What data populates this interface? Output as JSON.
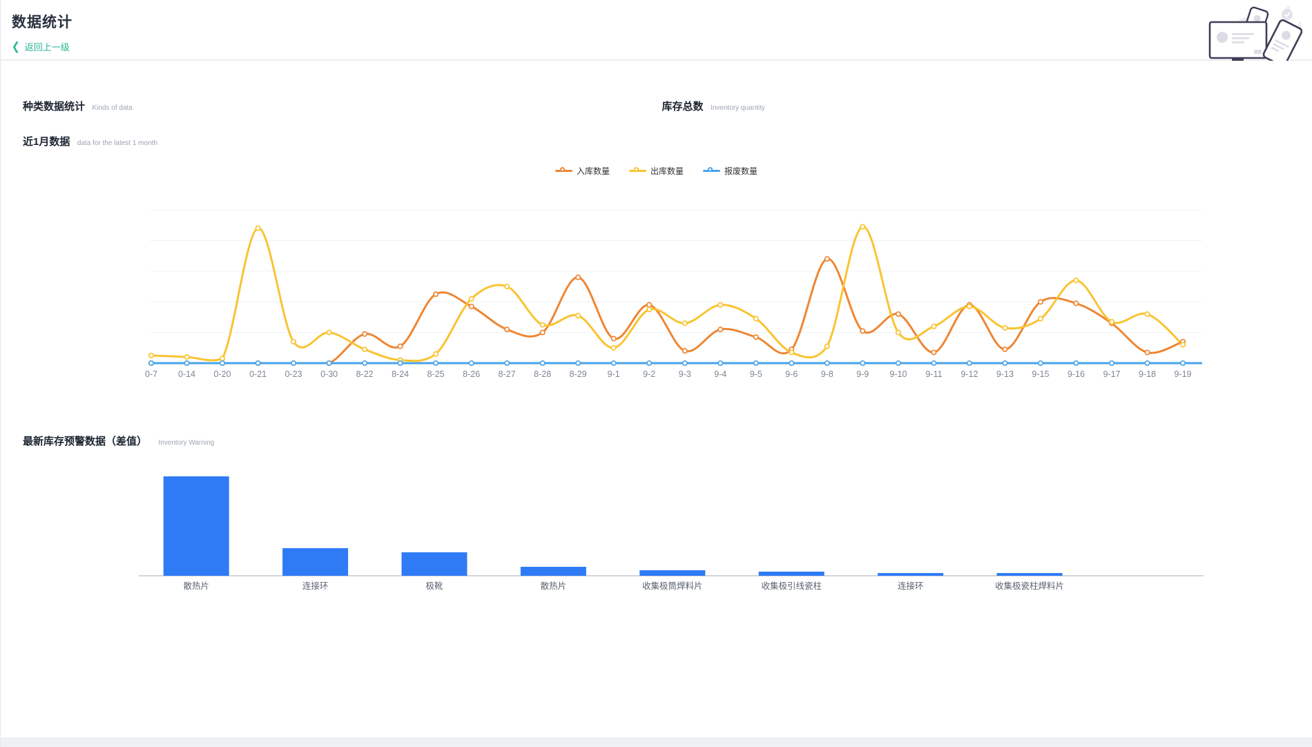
{
  "header": {
    "title": "数据统计",
    "back_label": "返回上一级",
    "back_chevron": "〈"
  },
  "sections": {
    "kinds": {
      "title": "种类数据统计",
      "subtitle": "Kinds of data"
    },
    "inventory": {
      "title": "库存总数",
      "subtitle": "Inventory quantity"
    },
    "month": {
      "title": "近1月数据",
      "subtitle": "data for the latest 1 month"
    },
    "warning": {
      "title": "最新库存预警数据（差值）",
      "subtitle": "Inventory Warning"
    }
  },
  "colors": {
    "accent_teal": "#26b394",
    "inbound_orange": "#EE8633",
    "outbound_yellow": "#F9C331",
    "scrap_blue": "#47A3EA",
    "bar_blue": "#2F7BF5",
    "gridline": "#edf1f6",
    "axis_label": "#7c8694",
    "bar_axis_line": "#c5c9d0"
  },
  "chart_data": [
    {
      "type": "line",
      "title": "近1月数据 (data for the latest 1 month)",
      "smooth": true,
      "grid": true,
      "legend_position": "top-center",
      "ylim": [
        0,
        50
      ],
      "y_gridline_step": 10,
      "categories": [
        "0-7",
        "0-14",
        "0-20",
        "0-21",
        "0-23",
        "0-30",
        "8-22",
        "8-24",
        "8-25",
        "8-26",
        "8-27",
        "8-28",
        "8-29",
        "9-1",
        "9-2",
        "9-3",
        "9-4",
        "9-5",
        "9-6",
        "9-8",
        "9-9",
        "9-10",
        "9-11",
        "9-12",
        "9-13",
        "9-15",
        "9-16",
        "9-17",
        "9-18",
        "9-19"
      ],
      "series": [
        {
          "name": "入库数量",
          "color": "#EE8633",
          "values": [
            0,
            0,
            0,
            0,
            0,
            0,
            9.5,
            5.5,
            22.5,
            18.5,
            11,
            10,
            28,
            8,
            19,
            4,
            11,
            8.5,
            4.5,
            34,
            10.5,
            16,
            3.5,
            19,
            4.5,
            20,
            19.5,
            13,
            3.5,
            7
          ]
        },
        {
          "name": "出库数量",
          "color": "#F9C331",
          "values": [
            2.5,
            2,
            1.5,
            44,
            7,
            10,
            4.5,
            1,
            3,
            21,
            25,
            12.5,
            15.5,
            5,
            17.5,
            13,
            19,
            14.5,
            3.5,
            5.5,
            44.5,
            10,
            12,
            18.5,
            11.5,
            14.5,
            27,
            13.5,
            16,
            6
          ]
        },
        {
          "name": "报废数量",
          "color": "#47A3EA",
          "values": [
            0,
            0,
            0,
            0,
            0,
            0,
            0,
            0,
            0,
            0,
            0,
            0,
            0,
            0,
            0,
            0,
            0,
            0,
            0,
            0,
            0,
            0,
            0,
            0,
            0,
            0,
            0,
            0,
            0,
            0
          ]
        }
      ]
    },
    {
      "type": "bar",
      "title": "最新库存预警数据（差值） Inventory Warning",
      "ylim": [
        0,
        160
      ],
      "bar_color": "#2F7BF5",
      "categories": [
        "散热片",
        "连接环",
        "极靴",
        "散热片",
        "收集极筒焊料片",
        "收集极引线瓷柱",
        "连接环",
        "收集极瓷柱焊料片"
      ],
      "values": [
        144,
        40,
        34,
        13,
        8,
        6,
        4,
        4
      ]
    }
  ]
}
